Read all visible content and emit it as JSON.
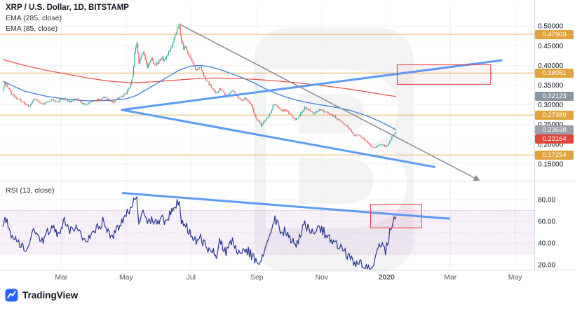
{
  "header": {
    "title": "XRP / U.S. Dollar, 1D, BITSTAMP",
    "indicators": [
      "EMA (285, close)",
      "EMA (85, close)"
    ]
  },
  "rsi": {
    "label": "RSI (13, close)"
  },
  "footer": {
    "brand": "TradingView"
  },
  "chart_data": {
    "type": "candlestick",
    "symbol": "XRP/USD",
    "interval": "1D",
    "exchange": "BITSTAMP",
    "watermark_text": "B",
    "colors": {
      "up": "#26a69a",
      "down": "#ef5350",
      "ema85": "#3f7fd6",
      "ema285": "#e8584f",
      "rsi": "#283593",
      "grid": "#eef1f6",
      "trend_blue": "#5b9cf6",
      "trend_gray": "#8a8d94",
      "level_line": "#e2a33b",
      "band": "#9c27b0",
      "box": "#f23645",
      "separator": "#d6d9e0",
      "axis_text": "#131722",
      "time_text": "#555a64",
      "watermark": "#131722",
      "brand_blue": "#2962ff"
    },
    "price_axis": {
      "min": 0.107,
      "max": 0.552,
      "ticks": [
        {
          "label": "0.50000",
          "value": 0.5
        },
        {
          "label": "0.45000",
          "value": 0.45
        },
        {
          "label": "0.40000",
          "value": 0.4
        },
        {
          "label": "0.35000",
          "value": 0.35
        },
        {
          "label": "0.30000",
          "value": 0.3
        },
        {
          "label": "0.25000",
          "value": 0.25
        },
        {
          "label": "0.20000",
          "value": 0.2
        },
        {
          "label": "0.15000",
          "value": 0.15
        }
      ]
    },
    "rsi_axis": {
      "min": 15.5,
      "max": 94.8,
      "band": [
        30,
        70
      ],
      "mid": 50,
      "ticks": [
        {
          "label": "80.00",
          "value": 80
        },
        {
          "label": "60.00",
          "value": 60
        },
        {
          "label": "40.00",
          "value": 40
        },
        {
          "label": "20.00",
          "value": 20
        }
      ]
    },
    "time_axis": {
      "total_days": 500,
      "labels": [
        {
          "label": "Mar",
          "day": 55
        },
        {
          "label": "May",
          "day": 116
        },
        {
          "label": "Jul",
          "day": 177
        },
        {
          "label": "Sep",
          "day": 239
        },
        {
          "label": "Nov",
          "day": 300
        },
        {
          "label": "2020",
          "day": 361,
          "bold": true
        },
        {
          "label": "Mar",
          "day": 421
        },
        {
          "label": "May",
          "day": 482
        }
      ]
    },
    "last_day": 370,
    "hlines": [
      0.47903,
      0.38051,
      0.27389,
      0.17254
    ],
    "badges": [
      {
        "label": "0.47903",
        "value": 0.47903,
        "color": "#e2a33b",
        "kind": "level"
      },
      {
        "label": "0.38051",
        "value": 0.38051,
        "color": "#e2a33b",
        "kind": "level"
      },
      {
        "label": "0.32123",
        "value": 0.32123,
        "color": "#8b96a3",
        "kind": "ema-285"
      },
      {
        "label": "0.27389",
        "value": 0.27389,
        "color": "#e2a33b",
        "kind": "level"
      },
      {
        "label": "0.23638",
        "value": 0.23638,
        "color": "#9b9ea6",
        "kind": "ema-85"
      },
      {
        "label": "0.23164",
        "value": 0.23164,
        "color": "#e0453a",
        "kind": "last-price"
      },
      {
        "label": "0.17254",
        "value": 0.17254,
        "color": "#e2a33b",
        "kind": "level"
      }
    ],
    "price_anchors": [
      [
        0,
        0.332
      ],
      [
        2,
        0.358
      ],
      [
        4,
        0.345
      ],
      [
        8,
        0.328
      ],
      [
        12,
        0.318
      ],
      [
        16,
        0.312
      ],
      [
        20,
        0.302
      ],
      [
        25,
        0.298
      ],
      [
        30,
        0.315
      ],
      [
        34,
        0.306
      ],
      [
        38,
        0.3
      ],
      [
        42,
        0.308
      ],
      [
        47,
        0.312
      ],
      [
        52,
        0.308
      ],
      [
        55,
        0.313
      ],
      [
        58,
        0.316
      ],
      [
        62,
        0.308
      ],
      [
        66,
        0.312
      ],
      [
        70,
        0.314
      ],
      [
        74,
        0.305
      ],
      [
        78,
        0.3
      ],
      [
        82,
        0.306
      ],
      [
        86,
        0.31
      ],
      [
        90,
        0.313
      ],
      [
        95,
        0.318
      ],
      [
        100,
        0.312
      ],
      [
        104,
        0.308
      ],
      [
        108,
        0.315
      ],
      [
        112,
        0.322
      ],
      [
        116,
        0.33
      ],
      [
        119,
        0.345
      ],
      [
        122,
        0.37
      ],
      [
        124,
        0.43
      ],
      [
        126,
        0.455
      ],
      [
        128,
        0.405
      ],
      [
        130,
        0.42
      ],
      [
        132,
        0.435
      ],
      [
        134,
        0.415
      ],
      [
        136,
        0.395
      ],
      [
        138,
        0.408
      ],
      [
        140,
        0.415
      ],
      [
        143,
        0.402
      ],
      [
        146,
        0.408
      ],
      [
        149,
        0.42
      ],
      [
        152,
        0.412
      ],
      [
        155,
        0.428
      ],
      [
        158,
        0.442
      ],
      [
        161,
        0.465
      ],
      [
        164,
        0.49
      ],
      [
        166,
        0.498
      ],
      [
        168,
        0.462
      ],
      [
        170,
        0.445
      ],
      [
        172,
        0.448
      ],
      [
        174,
        0.43
      ],
      [
        177,
        0.415
      ],
      [
        180,
        0.398
      ],
      [
        183,
        0.388
      ],
      [
        186,
        0.398
      ],
      [
        189,
        0.372
      ],
      [
        192,
        0.36
      ],
      [
        195,
        0.35
      ],
      [
        198,
        0.338
      ],
      [
        201,
        0.33
      ],
      [
        204,
        0.342
      ],
      [
        207,
        0.336
      ],
      [
        210,
        0.322
      ],
      [
        213,
        0.33
      ],
      [
        216,
        0.336
      ],
      [
        219,
        0.325
      ],
      [
        222,
        0.318
      ],
      [
        225,
        0.312
      ],
      [
        228,
        0.318
      ],
      [
        231,
        0.308
      ],
      [
        234,
        0.298
      ],
      [
        237,
        0.275
      ],
      [
        239,
        0.262
      ],
      [
        241,
        0.255
      ],
      [
        243,
        0.248
      ],
      [
        246,
        0.258
      ],
      [
        249,
        0.268
      ],
      [
        252,
        0.282
      ],
      [
        254,
        0.295
      ],
      [
        256,
        0.302
      ],
      [
        258,
        0.296
      ],
      [
        260,
        0.29
      ],
      [
        263,
        0.284
      ],
      [
        266,
        0.289
      ],
      [
        269,
        0.279
      ],
      [
        272,
        0.27
      ],
      [
        275,
        0.262
      ],
      [
        278,
        0.268
      ],
      [
        281,
        0.282
      ],
      [
        284,
        0.292
      ],
      [
        287,
        0.287
      ],
      [
        290,
        0.282
      ],
      [
        293,
        0.278
      ],
      [
        296,
        0.285
      ],
      [
        300,
        0.288
      ],
      [
        304,
        0.281
      ],
      [
        308,
        0.275
      ],
      [
        312,
        0.27
      ],
      [
        316,
        0.262
      ],
      [
        320,
        0.252
      ],
      [
        324,
        0.243
      ],
      [
        328,
        0.232
      ],
      [
        331,
        0.222
      ],
      [
        334,
        0.225
      ],
      [
        337,
        0.218
      ],
      [
        340,
        0.212
      ],
      [
        343,
        0.205
      ],
      [
        346,
        0.196
      ],
      [
        349,
        0.19
      ],
      [
        352,
        0.194
      ],
      [
        355,
        0.2
      ],
      [
        358,
        0.196
      ],
      [
        360,
        0.193
      ],
      [
        362,
        0.198
      ],
      [
        364,
        0.207
      ],
      [
        366,
        0.218
      ],
      [
        368,
        0.226
      ],
      [
        370,
        0.232
      ]
    ],
    "ema85_anchors": [
      [
        0,
        0.36
      ],
      [
        20,
        0.335
      ],
      [
        40,
        0.322
      ],
      [
        60,
        0.314
      ],
      [
        80,
        0.31
      ],
      [
        100,
        0.311
      ],
      [
        116,
        0.315
      ],
      [
        126,
        0.324
      ],
      [
        136,
        0.34
      ],
      [
        146,
        0.356
      ],
      [
        156,
        0.372
      ],
      [
        166,
        0.388
      ],
      [
        176,
        0.398
      ],
      [
        186,
        0.4
      ],
      [
        196,
        0.396
      ],
      [
        206,
        0.388
      ],
      [
        216,
        0.378
      ],
      [
        226,
        0.368
      ],
      [
        236,
        0.356
      ],
      [
        246,
        0.342
      ],
      [
        256,
        0.33
      ],
      [
        266,
        0.32
      ],
      [
        276,
        0.312
      ],
      [
        286,
        0.306
      ],
      [
        296,
        0.301
      ],
      [
        306,
        0.297
      ],
      [
        316,
        0.292
      ],
      [
        326,
        0.286
      ],
      [
        336,
        0.278
      ],
      [
        346,
        0.268
      ],
      [
        356,
        0.256
      ],
      [
        364,
        0.245
      ],
      [
        370,
        0.236
      ]
    ],
    "ema285_anchors": [
      [
        0,
        0.415
      ],
      [
        20,
        0.4
      ],
      [
        40,
        0.388
      ],
      [
        60,
        0.378
      ],
      [
        80,
        0.368
      ],
      [
        100,
        0.36
      ],
      [
        120,
        0.356
      ],
      [
        140,
        0.358
      ],
      [
        160,
        0.362
      ],
      [
        180,
        0.366
      ],
      [
        200,
        0.368
      ],
      [
        220,
        0.367
      ],
      [
        240,
        0.364
      ],
      [
        260,
        0.36
      ],
      [
        280,
        0.355
      ],
      [
        300,
        0.349
      ],
      [
        320,
        0.342
      ],
      [
        340,
        0.334
      ],
      [
        355,
        0.327
      ],
      [
        370,
        0.321
      ]
    ],
    "rsi_anchors": [
      [
        0,
        58
      ],
      [
        2,
        66
      ],
      [
        5,
        54
      ],
      [
        9,
        47
      ],
      [
        13,
        42
      ],
      [
        17,
        38
      ],
      [
        21,
        33
      ],
      [
        25,
        36
      ],
      [
        30,
        55
      ],
      [
        34,
        46
      ],
      [
        38,
        42
      ],
      [
        42,
        50
      ],
      [
        47,
        54
      ],
      [
        52,
        48
      ],
      [
        55,
        56
      ],
      [
        58,
        60
      ],
      [
        62,
        50
      ],
      [
        66,
        54
      ],
      [
        70,
        57
      ],
      [
        74,
        46
      ],
      [
        78,
        41
      ],
      [
        82,
        48
      ],
      [
        86,
        52
      ],
      [
        90,
        55
      ],
      [
        95,
        61
      ],
      [
        100,
        50
      ],
      [
        104,
        46
      ],
      [
        108,
        54
      ],
      [
        112,
        60
      ],
      [
        116,
        66
      ],
      [
        120,
        72
      ],
      [
        124,
        80
      ],
      [
        126,
        83
      ],
      [
        128,
        62
      ],
      [
        130,
        66
      ],
      [
        132,
        70
      ],
      [
        134,
        62
      ],
      [
        136,
        55
      ],
      [
        138,
        60
      ],
      [
        140,
        63
      ],
      [
        143,
        57
      ],
      [
        146,
        60
      ],
      [
        149,
        64
      ],
      [
        152,
        58
      ],
      [
        155,
        63
      ],
      [
        158,
        67
      ],
      [
        161,
        72
      ],
      [
        164,
        78
      ],
      [
        166,
        80
      ],
      [
        168,
        62
      ],
      [
        170,
        57
      ],
      [
        172,
        58
      ],
      [
        174,
        52
      ],
      [
        177,
        48
      ],
      [
        180,
        44
      ],
      [
        183,
        41
      ],
      [
        186,
        47
      ],
      [
        189,
        39
      ],
      [
        192,
        36
      ],
      [
        195,
        34
      ],
      [
        198,
        31
      ],
      [
        201,
        30
      ],
      [
        204,
        40
      ],
      [
        207,
        37
      ],
      [
        210,
        32
      ],
      [
        213,
        38
      ],
      [
        216,
        41
      ],
      [
        219,
        36
      ],
      [
        222,
        33
      ],
      [
        225,
        31
      ],
      [
        228,
        36
      ],
      [
        231,
        32
      ],
      [
        234,
        29
      ],
      [
        237,
        25
      ],
      [
        239,
        23
      ],
      [
        241,
        22
      ],
      [
        243,
        21
      ],
      [
        246,
        32
      ],
      [
        249,
        40
      ],
      [
        252,
        50
      ],
      [
        254,
        58
      ],
      [
        256,
        62
      ],
      [
        258,
        58
      ],
      [
        260,
        54
      ],
      [
        263,
        50
      ],
      [
        266,
        53
      ],
      [
        269,
        47
      ],
      [
        272,
        42
      ],
      [
        275,
        38
      ],
      [
        278,
        43
      ],
      [
        281,
        52
      ],
      [
        284,
        58
      ],
      [
        287,
        54
      ],
      [
        290,
        50
      ],
      [
        293,
        47
      ],
      [
        296,
        52
      ],
      [
        300,
        53
      ],
      [
        304,
        48
      ],
      [
        308,
        44
      ],
      [
        312,
        41
      ],
      [
        316,
        37
      ],
      [
        320,
        32
      ],
      [
        324,
        29
      ],
      [
        328,
        25
      ],
      [
        331,
        21
      ],
      [
        334,
        25
      ],
      [
        337,
        22
      ],
      [
        340,
        20
      ],
      [
        343,
        18
      ],
      [
        346,
        16
      ],
      [
        349,
        20
      ],
      [
        352,
        30
      ],
      [
        355,
        40
      ],
      [
        358,
        36
      ],
      [
        360,
        33
      ],
      [
        362,
        40
      ],
      [
        364,
        50
      ],
      [
        366,
        58
      ],
      [
        368,
        62
      ],
      [
        370,
        65
      ]
    ],
    "trendlines": [
      {
        "panel": "price",
        "from": [
          112,
          0.287
        ],
        "to": [
          406,
          0.142
        ],
        "color": "#5b9cf6",
        "width": 3
      },
      {
        "panel": "price",
        "from": [
          112,
          0.287
        ],
        "to": [
          469,
          0.413
        ],
        "color": "#5b9cf6",
        "width": 3
      },
      {
        "panel": "price",
        "from": [
          166,
          0.505
        ],
        "to": [
          448,
          0.108
        ],
        "color": "#8a8d94",
        "width": 1.5,
        "arrow": true
      },
      {
        "panel": "rsi",
        "from": [
          113,
          86
        ],
        "to": [
          420,
          62.5
        ],
        "color": "#5b9cf6",
        "width": 3
      }
    ],
    "boxes": [
      {
        "panel": "price",
        "d": [
          371,
          459
        ],
        "v": [
          0.352,
          0.402
        ],
        "color": "#f23645"
      },
      {
        "panel": "rsi",
        "d": [
          346,
          394
        ],
        "v": [
          54,
          75.5
        ],
        "color": "#f23645"
      }
    ]
  }
}
